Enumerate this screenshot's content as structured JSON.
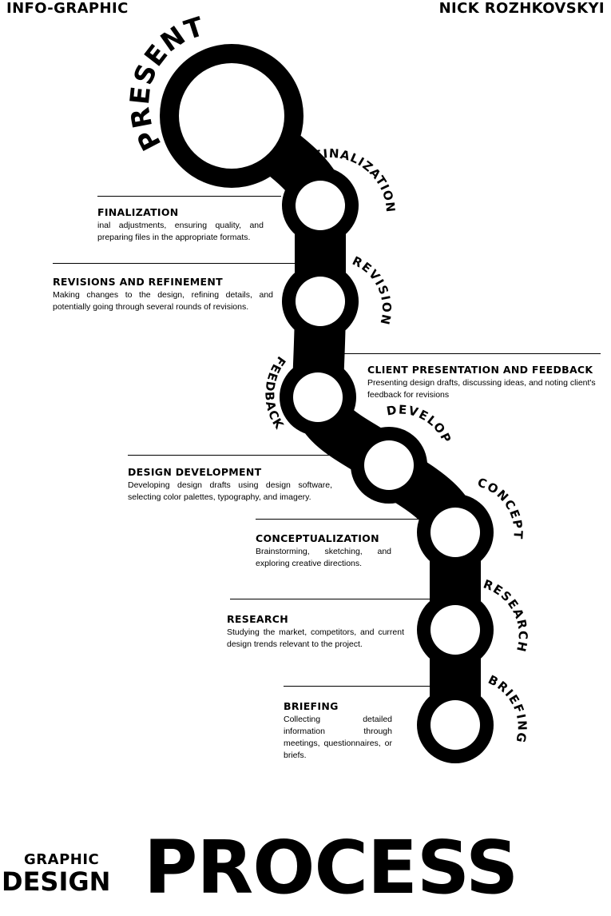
{
  "header": {
    "left": "INFO-GRAPHIC",
    "right": "NICK ROZHKOVSKYI"
  },
  "path_labels": {
    "present": "PRESENT",
    "finalization": "FINALIZATION",
    "revision": "REVISION",
    "feedback": "FEEDBACK",
    "develop": "DEVELOP",
    "concept": "CONCEPT",
    "research": "RESEARCH",
    "briefing": "BRIEFING"
  },
  "steps": [
    {
      "title": "FINALIZATION",
      "text": "inal adjustments, ensuring quality, and preparing files in the appropriate formats."
    },
    {
      "title": "REVISIONS AND REFINEMENT",
      "text": "Making changes to the design, refining details, and potentially going through several rounds of revisions."
    },
    {
      "title": "CLIENT PRESENTATION AND FEEDBACK",
      "text": "Presenting design drafts, discussing ideas, and noting client's feedback for revisions"
    },
    {
      "title": "DESIGN DEVELOPMENT",
      "text": "Developing design drafts using design software, selecting color palettes, typography, and imagery."
    },
    {
      "title": "CONCEPTUALIZATION",
      "text": "Brainstorming, sketching, and exploring creative directions."
    },
    {
      "title": "RESEARCH",
      "text": "Studying the market, competitors, and current design trends relevant to the project."
    },
    {
      "title": "BRIEFING",
      "text": "Collecting detailed information through meetings, questionnaires, or briefs."
    }
  ],
  "footer": {
    "line1": "GRAPHIC",
    "line2": "DESIGN",
    "big": "PROCESS"
  }
}
